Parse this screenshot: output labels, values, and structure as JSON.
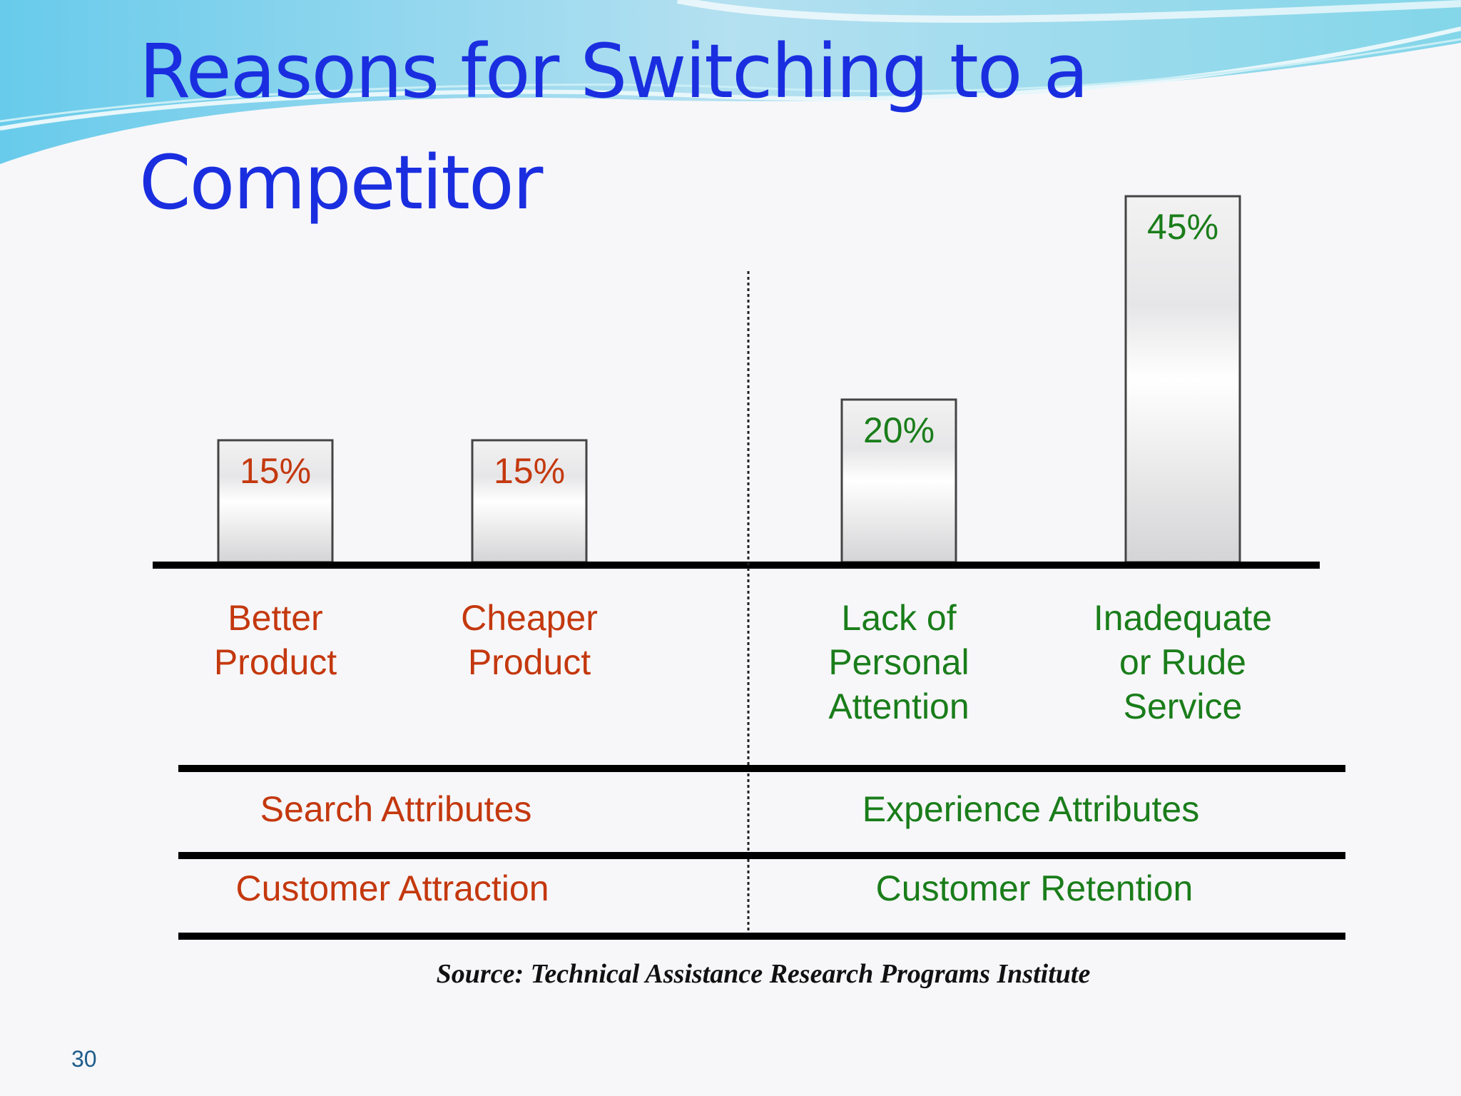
{
  "slide": {
    "title": "Reasons for Switching to a Competitor",
    "source": "Source: Technical Assistance Research Programs Institute",
    "page_number": "30",
    "colors": {
      "title": "#1a2ee0",
      "search": "#c4380e",
      "experience": "#1a7d1a"
    }
  },
  "chart_data": {
    "type": "bar",
    "categories": [
      "Better\nProduct",
      "Cheaper\nProduct",
      "Lack of\nPersonal\nAttention",
      "Inadequate\nor Rude\nService"
    ],
    "values": [
      15,
      15,
      20,
      45
    ],
    "value_labels": [
      "15%",
      "15%",
      "20%",
      "45%"
    ],
    "ylim": [
      0,
      45
    ],
    "grid": false,
    "groups": [
      {
        "attribute": "Search Attributes",
        "role": "Customer Attraction",
        "color": "#c4380e"
      },
      {
        "attribute": "Experience Attributes",
        "role": "Customer Retention",
        "color": "#1a7d1a"
      }
    ],
    "category_group": [
      0,
      0,
      1,
      1
    ]
  }
}
